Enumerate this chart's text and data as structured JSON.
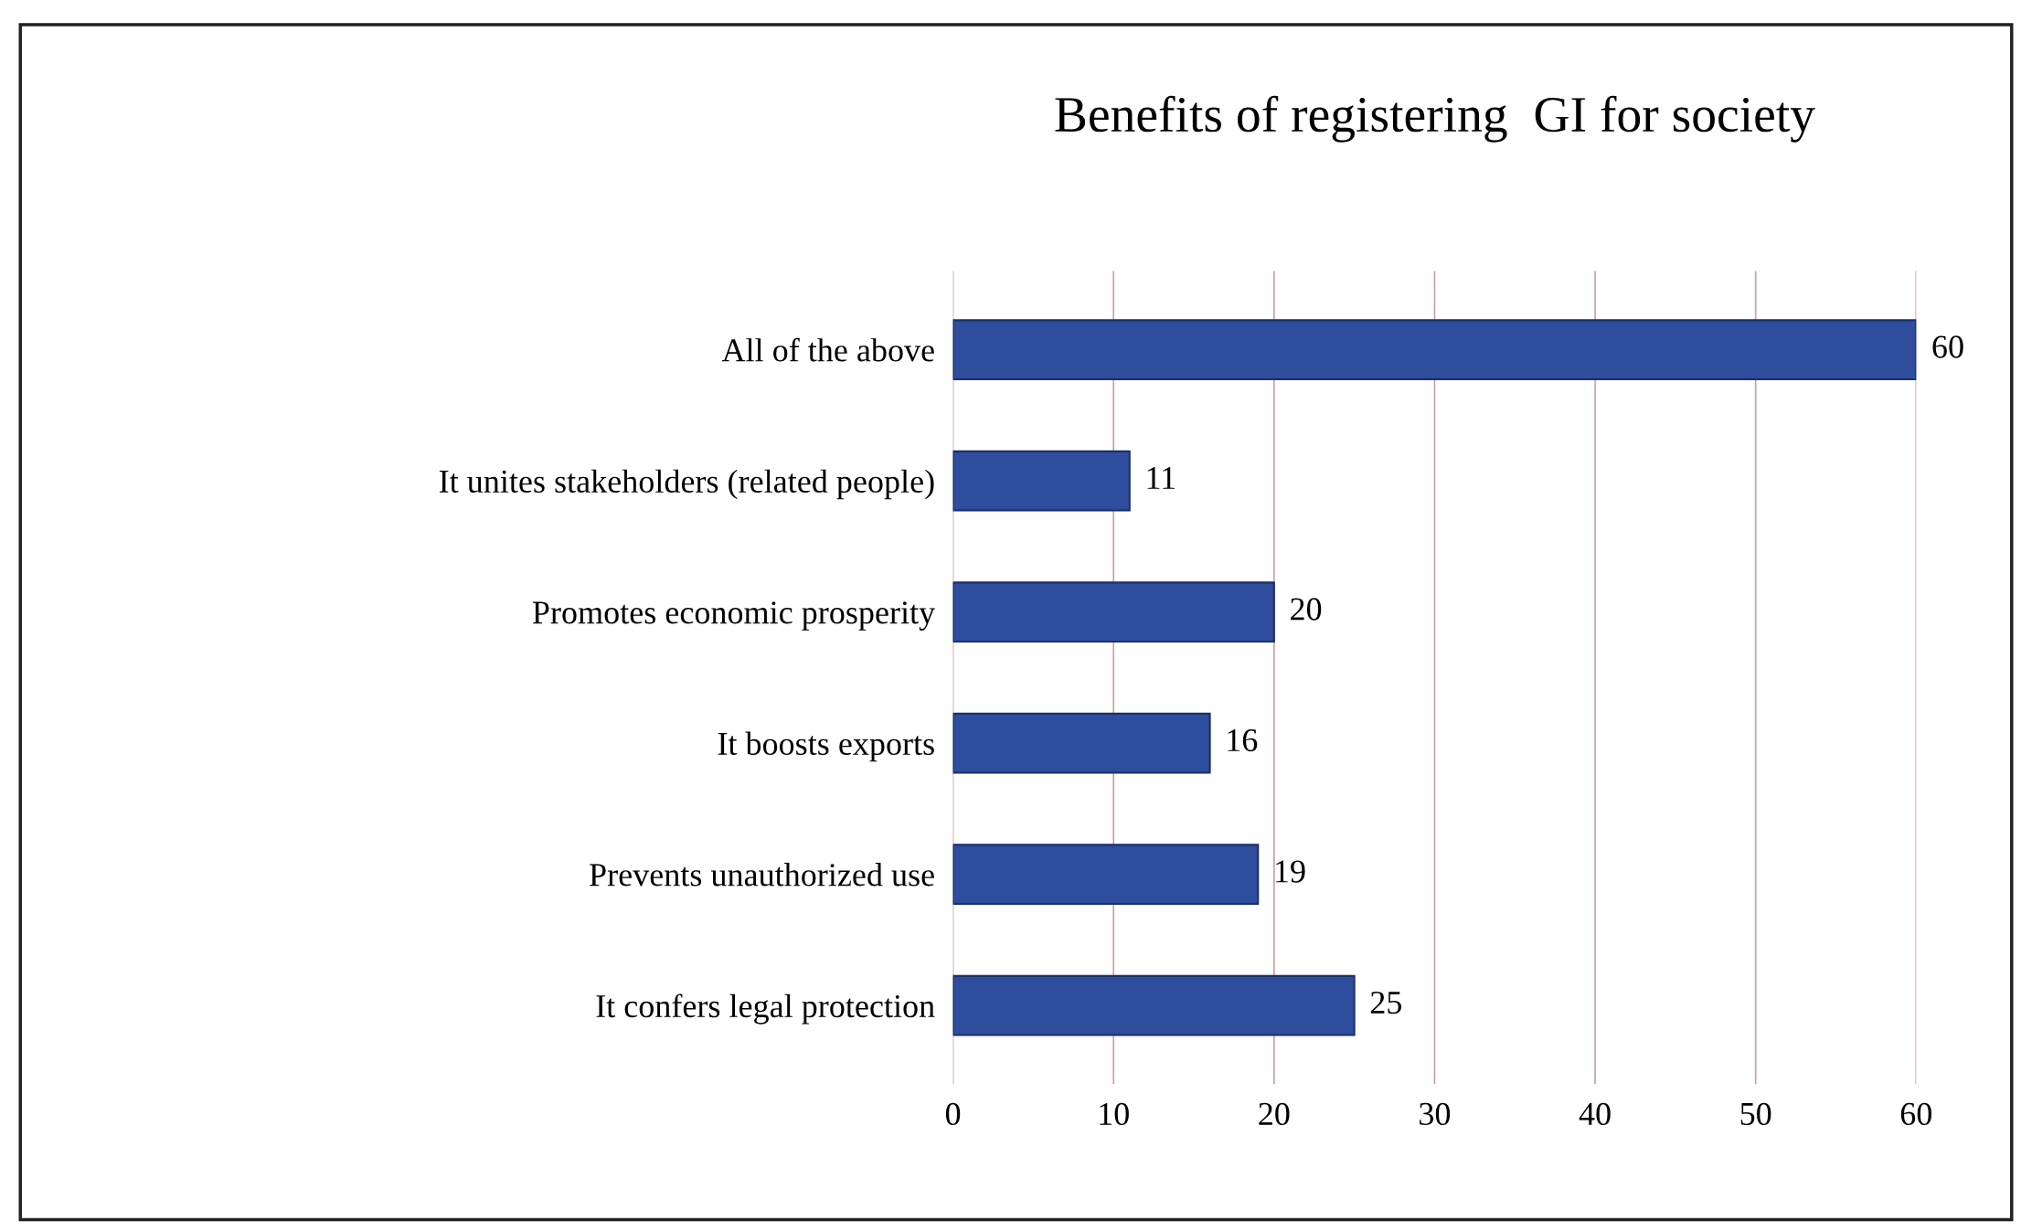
{
  "chart_data": {
    "type": "bar",
    "orientation": "horizontal",
    "title": "Benefits of registering  GI for society",
    "categories": [
      "All of the above",
      "It unites stakeholders (related people)",
      "Promotes economic prosperity",
      "It boosts exports",
      "Prevents unauthorized use",
      "It confers legal protection"
    ],
    "values": [
      60,
      11,
      20,
      16,
      19,
      25
    ],
    "color": "#2e4d9c",
    "xlim": [
      0,
      60
    ],
    "xticks": [
      0,
      10,
      20,
      30,
      40,
      50,
      60
    ],
    "grid": "x",
    "data_labels": true
  }
}
